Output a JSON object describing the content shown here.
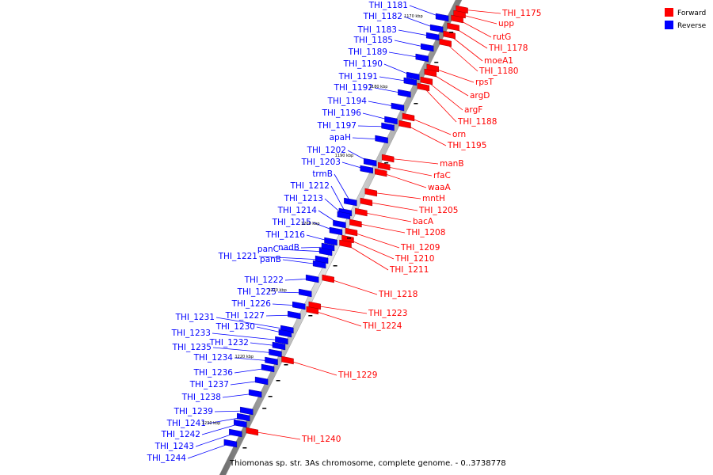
{
  "colors": {
    "forward": "#ff0000",
    "reverse": "#0000ff",
    "backbone": "#999999",
    "background": "#ffffff"
  },
  "legend": [
    {
      "label": "Forward",
      "color": "#ff0000"
    },
    {
      "label": "Reverse",
      "color": "#0000ff"
    }
  ],
  "caption": "Thiomonas sp. str. 3As chromosome, complete genome. - 0..3738778",
  "kbp_labels": [
    "1170 kbp",
    "1180 kbp",
    "1190 kbp",
    "1200 kbp",
    "1210 kbp",
    "1220 kbp",
    "1230 kbp"
  ],
  "reverse_labels": [
    "THI_1181",
    "THI_1182",
    "THI_1183",
    "THI_1185",
    "THI_1189",
    "THI_1190",
    "THI_1191",
    "THI_1192",
    "THI_1194",
    "THI_1196",
    "THI_1197",
    "apaH",
    "THI_1202",
    "THI_1203",
    "trmB",
    "THI_1212",
    "THI_1213",
    "THI_1214",
    "THI_1215",
    "THI_1216",
    "nadB",
    "panC",
    "THI_1221",
    "panB",
    "THI_1222",
    "THI_1225",
    "THI_1226",
    "THI_1227",
    "THI_1231",
    "THI_1230",
    "THI_1233",
    "THI_1232",
    "THI_1235",
    "THI_1234",
    "THI_1236",
    "THI_1237",
    "THI_1238",
    "THI_1239",
    "THI_1241",
    "THI_1242",
    "THI_1243",
    "THI_1244"
  ],
  "forward_labels": [
    "THI_1175",
    "upp",
    "rutG",
    "THI_1178",
    "moeA1",
    "THI_1180",
    "rpsT",
    "argD",
    "argF",
    "THI_1188",
    "orn",
    "THI_1195",
    "manB",
    "rfaC",
    "waaA",
    "mntH",
    "THI_1205",
    "bacA",
    "THI_1208",
    "THI_1209",
    "THI_1210",
    "THI_1211",
    "THI_1218",
    "THI_1223",
    "THI_1224",
    "THI_1229",
    "THI_1240"
  ]
}
